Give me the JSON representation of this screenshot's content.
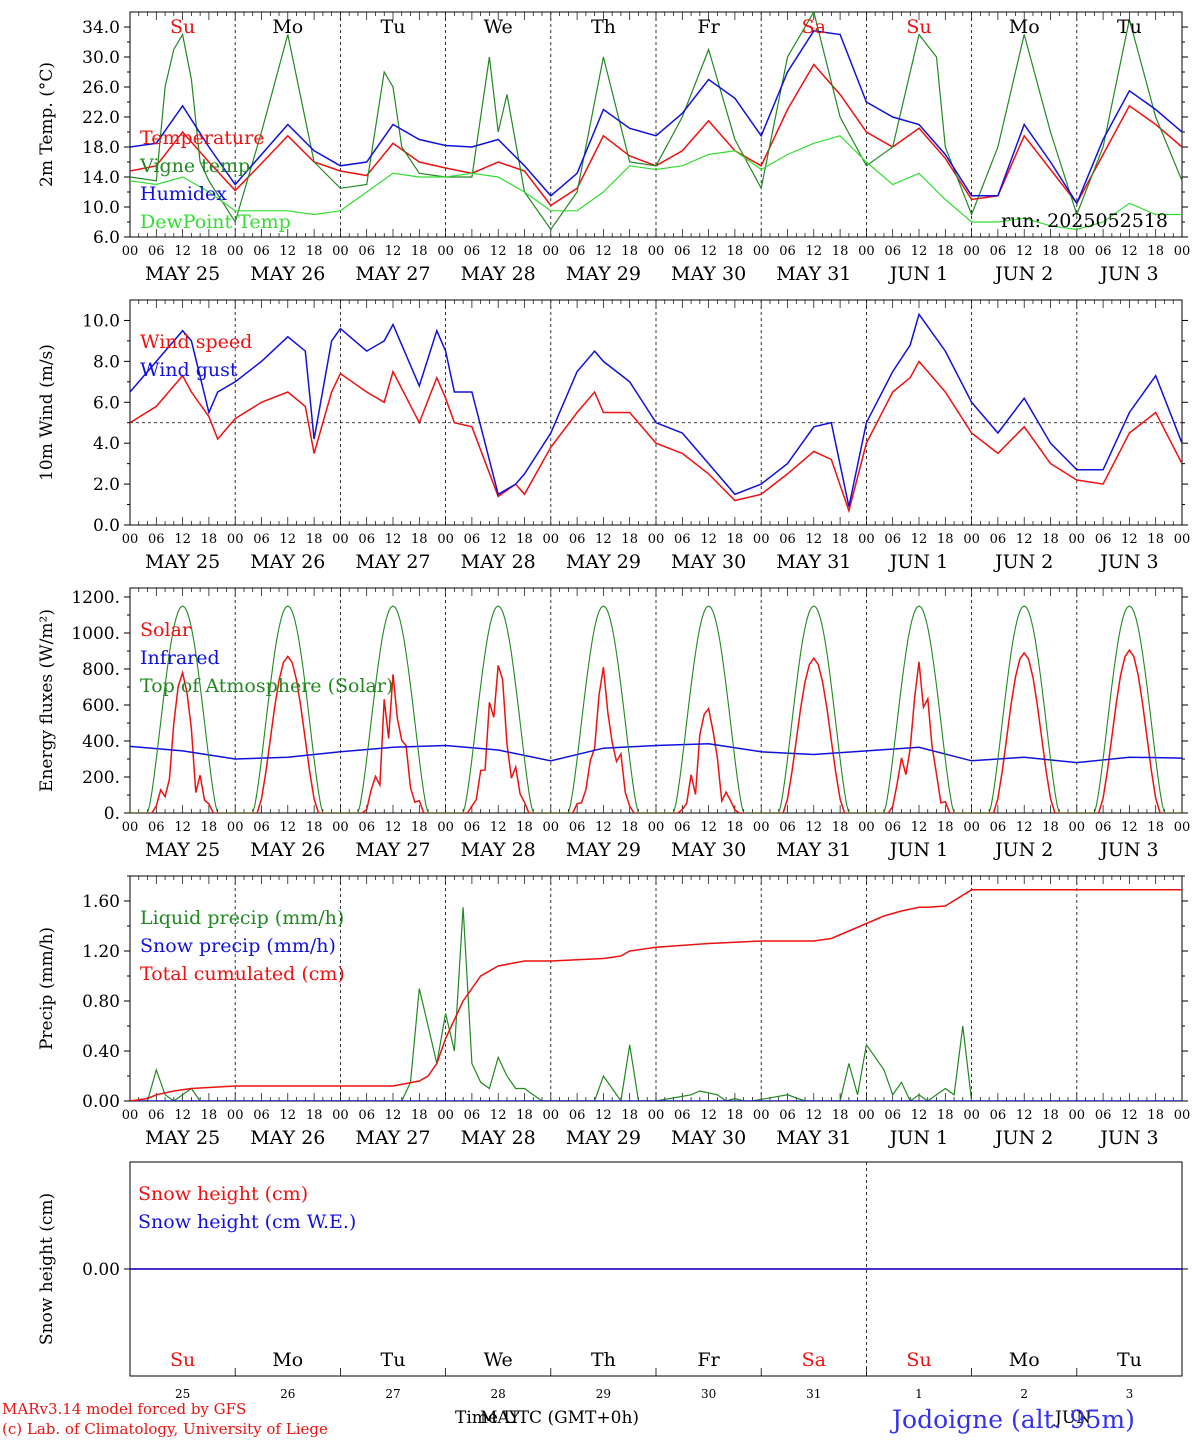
{
  "colors": {
    "red": "#ee1111",
    "green": "#228822",
    "blue": "#1111dd",
    "lightgreen": "#33dd33",
    "black": "#000000"
  },
  "days": {
    "dates": [
      "MAY 25",
      "MAY 26",
      "MAY 27",
      "MAY 28",
      "MAY 29",
      "MAY 30",
      "MAY 31",
      "JUN  1",
      "JUN  2",
      "JUN  3"
    ],
    "weekdays": [
      "Su",
      "Mo",
      "Tu",
      "We",
      "Th",
      "Fr",
      "Sa",
      "Su",
      "Mo",
      "Tu"
    ],
    "weekday_red": [
      true,
      false,
      false,
      false,
      false,
      false,
      true,
      true,
      false,
      false
    ],
    "hours": [
      "00",
      "06",
      "12",
      "18"
    ],
    "day_numbers": [
      "25",
      "26",
      "27",
      "28",
      "29",
      "30",
      "31",
      "1",
      "2",
      "3"
    ],
    "month_may": "MAY",
    "month_jun": "JUN"
  },
  "footer": {
    "model": "MARv3.14 model forced by GFS",
    "lab": "(c) Lab. of Climatology, University of Liege",
    "time_label": "Time UTC (GMT+0h)",
    "station": "Jodoigne (alt. 95m)"
  },
  "chart_data": [
    {
      "id": "temp",
      "type": "line",
      "ylabel": "2m Temp. (°C)",
      "ylim": [
        6,
        36
      ],
      "yticks": [
        "6.0",
        "10.0",
        "14.0",
        "18.0",
        "22.0",
        "26.0",
        "30.0",
        "34.0"
      ],
      "ytick_values": [
        6,
        10,
        14,
        18,
        22,
        26,
        30,
        34
      ],
      "xlim_hours": [
        0,
        240
      ],
      "annotation": "run: 2025052518",
      "series": [
        {
          "name": "Temperature",
          "color": "red",
          "x": [
            0,
            6,
            12,
            18,
            24,
            30,
            36,
            42,
            48,
            54,
            60,
            66,
            72,
            78,
            84,
            90,
            96,
            102,
            108,
            114,
            120,
            126,
            132,
            138,
            144,
            150,
            156,
            162,
            168,
            174,
            180,
            186,
            192,
            198,
            204,
            210,
            216,
            222,
            228,
            234,
            240
          ],
          "y": [
            14.8,
            15.5,
            20,
            16,
            12.2,
            15.8,
            19.5,
            16,
            14.8,
            14.2,
            18.5,
            16,
            15.2,
            14.5,
            16,
            14.8,
            10.2,
            12.5,
            19.5,
            16.8,
            15.5,
            17.5,
            21.5,
            17.5,
            15.5,
            23,
            29,
            25,
            20,
            18,
            20.5,
            16.5,
            11,
            11.5,
            19.5,
            15,
            10.5,
            17,
            23.5,
            21,
            18
          ]
        },
        {
          "name": "Vigne temp",
          "color": "green",
          "x": [
            0,
            6,
            8,
            10,
            12,
            14,
            16,
            18,
            24,
            30,
            36,
            42,
            48,
            54,
            58,
            60,
            62,
            66,
            72,
            78,
            82,
            84,
            86,
            90,
            96,
            102,
            108,
            114,
            120,
            126,
            132,
            138,
            144,
            150,
            156,
            162,
            168,
            174,
            180,
            184,
            186,
            192,
            198,
            204,
            210,
            216,
            222,
            228,
            234,
            240
          ],
          "y": [
            14,
            13.5,
            26,
            31,
            33,
            27,
            16,
            13.5,
            8,
            20,
            33,
            16,
            12.5,
            13,
            28,
            26,
            18,
            14.5,
            14,
            14,
            30,
            20,
            25,
            12,
            7,
            12,
            30,
            16,
            15.5,
            22,
            31,
            19,
            12.5,
            30,
            36,
            22,
            15.5,
            18,
            33,
            30,
            18,
            9,
            18,
            33,
            20,
            9,
            18,
            35,
            22,
            13.5
          ]
        },
        {
          "name": "Humidex",
          "color": "blue",
          "x": [
            0,
            6,
            12,
            18,
            24,
            30,
            36,
            42,
            48,
            54,
            60,
            66,
            72,
            78,
            84,
            90,
            96,
            102,
            108,
            114,
            120,
            126,
            132,
            138,
            144,
            150,
            156,
            162,
            168,
            174,
            180,
            186,
            192,
            198,
            204,
            210,
            216,
            222,
            228,
            234,
            240
          ],
          "y": [
            18,
            18.5,
            23.5,
            18,
            13,
            17,
            21,
            17.5,
            15.5,
            16,
            21,
            19,
            18.2,
            18,
            19,
            15.5,
            11.5,
            14.5,
            23,
            20.5,
            19.5,
            22.5,
            27,
            24.5,
            19.5,
            28,
            33.5,
            33,
            24,
            22,
            21,
            17,
            11.5,
            11.5,
            21,
            16,
            10.5,
            19,
            25.5,
            23,
            20
          ]
        },
        {
          "name": "DewPoint Temp",
          "color": "lightgreen",
          "x": [
            0,
            6,
            12,
            18,
            24,
            30,
            36,
            42,
            48,
            54,
            60,
            66,
            72,
            78,
            84,
            90,
            96,
            102,
            108,
            114,
            120,
            126,
            132,
            138,
            144,
            150,
            156,
            162,
            168,
            174,
            180,
            186,
            192,
            198,
            204,
            210,
            216,
            222,
            228,
            234,
            240
          ],
          "y": [
            13.5,
            13,
            14,
            12,
            9.5,
            9.5,
            9.5,
            9,
            9.5,
            12,
            14.5,
            14,
            14,
            14.5,
            14,
            12,
            9.5,
            9.5,
            12,
            15.5,
            15,
            15.5,
            17,
            17.5,
            15,
            17,
            18.5,
            19.5,
            16,
            13,
            14.5,
            11,
            8,
            8,
            8.5,
            7.5,
            7,
            8,
            10.5,
            9,
            9
          ]
        }
      ]
    },
    {
      "id": "wind",
      "type": "line",
      "ylabel": "10m Wind (m/s)",
      "ylim": [
        0,
        11
      ],
      "yticks": [
        "0.0",
        "2.0",
        "4.0",
        "6.0",
        "8.0",
        "10.0"
      ],
      "ytick_values": [
        0,
        2,
        4,
        6,
        8,
        10
      ],
      "ref_line": 5,
      "xlim_hours": [
        0,
        240
      ],
      "series": [
        {
          "name": "Wind speed",
          "color": "red",
          "x": [
            0,
            6,
            12,
            14,
            18,
            20,
            24,
            30,
            36,
            40,
            42,
            46,
            48,
            54,
            58,
            60,
            66,
            70,
            72,
            74,
            78,
            84,
            88,
            90,
            96,
            102,
            106,
            108,
            114,
            120,
            126,
            132,
            138,
            144,
            150,
            156,
            160,
            164,
            168,
            174,
            178,
            180,
            186,
            192,
            198,
            204,
            210,
            216,
            222,
            228,
            234,
            240
          ],
          "y": [
            5,
            5.8,
            7.3,
            6.5,
            5.3,
            4.2,
            5.2,
            6,
            6.5,
            5.8,
            3.5,
            6.5,
            7.4,
            6.5,
            6,
            7.5,
            5,
            7.2,
            6.2,
            5,
            4.8,
            1.4,
            2,
            1.5,
            3.8,
            5.5,
            6.5,
            5.5,
            5.5,
            4,
            3.5,
            2.5,
            1.2,
            1.5,
            2.5,
            3.6,
            3.2,
            0.7,
            4,
            6.5,
            7.2,
            8,
            6.5,
            4.5,
            3.5,
            4.8,
            3,
            2.2,
            2,
            4.5,
            5.5,
            3
          ]
        },
        {
          "name": "Wind gust",
          "color": "blue",
          "x": [
            0,
            6,
            12,
            14,
            18,
            20,
            24,
            30,
            36,
            40,
            42,
            46,
            48,
            54,
            58,
            60,
            66,
            70,
            72,
            74,
            78,
            84,
            88,
            90,
            96,
            102,
            106,
            108,
            114,
            120,
            126,
            132,
            138,
            144,
            150,
            156,
            160,
            164,
            168,
            174,
            178,
            180,
            186,
            192,
            198,
            204,
            210,
            216,
            222,
            228,
            234,
            240
          ],
          "y": [
            6.5,
            8,
            9.5,
            9,
            5.5,
            6.5,
            7,
            8,
            9.2,
            8.5,
            4.2,
            9,
            9.6,
            8.5,
            9,
            9.8,
            6.8,
            9.5,
            8.5,
            6.5,
            6.5,
            1.5,
            2,
            2.5,
            4.5,
            7.5,
            8.5,
            8,
            7,
            5,
            4.5,
            3,
            1.5,
            2,
            3,
            4.8,
            5,
            0.9,
            5,
            7.5,
            8.8,
            10.3,
            8.5,
            6,
            4.5,
            6.2,
            4,
            2.7,
            2.7,
            5.5,
            7.3,
            4
          ]
        }
      ]
    },
    {
      "id": "energy",
      "type": "line",
      "ylabel": "Energy fluxes (W/m²)",
      "ylim": [
        0,
        1250
      ],
      "yticks": [
        "0.",
        "200.",
        "400.",
        "600.",
        "800.",
        "1000.",
        "1200."
      ],
      "ytick_values": [
        0,
        200,
        400,
        600,
        800,
        1000,
        1200
      ],
      "xlim_hours": [
        0,
        240
      ],
      "series": [
        {
          "name": "Solar",
          "color": "red",
          "peaks": [
            780,
            870,
            770,
            820,
            810,
            580,
            860,
            840,
            890,
            905
          ],
          "cloudy": [
            true,
            false,
            true,
            true,
            true,
            true,
            false,
            true,
            false,
            false
          ]
        },
        {
          "name": "Infrared",
          "color": "blue",
          "x": [
            0,
            12,
            24,
            36,
            48,
            60,
            72,
            84,
            96,
            108,
            120,
            132,
            144,
            156,
            168,
            180,
            192,
            204,
            216,
            228,
            240
          ],
          "y": [
            370,
            345,
            300,
            310,
            340,
            365,
            375,
            350,
            290,
            360,
            375,
            385,
            340,
            325,
            345,
            365,
            290,
            310,
            280,
            310,
            305
          ]
        },
        {
          "name": "Top of Atmosphere (Solar)",
          "color": "green",
          "peak": 1150
        }
      ]
    },
    {
      "id": "precip",
      "type": "line",
      "ylabel": "Precip (mm/h)",
      "ylim": [
        0,
        1.8
      ],
      "yticks": [
        "0.00",
        "0.40",
        "0.80",
        "1.20",
        "1.60"
      ],
      "ytick_values": [
        0,
        0.4,
        0.8,
        1.2,
        1.6
      ],
      "xlim_hours": [
        0,
        240
      ],
      "series": [
        {
          "name": "Liquid precip (mm/h)",
          "color": "green",
          "x": [
            0,
            4,
            6,
            8,
            10,
            12,
            14,
            16,
            18,
            20,
            62,
            64,
            66,
            68,
            70,
            72,
            74,
            76,
            78,
            80,
            82,
            84,
            86,
            88,
            90,
            94,
            96,
            98,
            106,
            108,
            110,
            112,
            114,
            116,
            118,
            120,
            128,
            130,
            134,
            136,
            138,
            140,
            142,
            150,
            154,
            162,
            164,
            166,
            168,
            170,
            172,
            174,
            176,
            178,
            180,
            182,
            186,
            188,
            190,
            192,
            194
          ],
          "y": [
            0,
            0,
            0.25,
            0.05,
            0,
            0.05,
            0.1,
            0,
            0,
            0,
            0,
            0.15,
            0.9,
            0.6,
            0.3,
            0.7,
            0.4,
            1.55,
            0.3,
            0.15,
            0.1,
            0.35,
            0.2,
            0.1,
            0.1,
            0,
            0,
            0,
            0,
            0.2,
            0.1,
            0,
            0.45,
            0,
            0,
            0,
            0.05,
            0.08,
            0.05,
            0,
            0.02,
            0,
            0,
            0.05,
            0,
            0,
            0.3,
            0.05,
            0.45,
            0.35,
            0.25,
            0.05,
            0.15,
            0,
            0.05,
            0,
            0.1,
            0.05,
            0.6,
            0,
            0
          ]
        },
        {
          "name": "Snow precip (mm/h)",
          "color": "blue",
          "x": [
            0,
            240
          ],
          "y": [
            0,
            0
          ]
        },
        {
          "name": "Total cumulated (cm)",
          "color": "red",
          "x": [
            0,
            4,
            6,
            10,
            14,
            24,
            48,
            60,
            66,
            68,
            70,
            72,
            76,
            80,
            84,
            90,
            96,
            108,
            112,
            114,
            120,
            132,
            144,
            156,
            160,
            164,
            168,
            172,
            174,
            176,
            180,
            182,
            186,
            192,
            240
          ],
          "y": [
            0,
            0.02,
            0.05,
            0.08,
            0.1,
            0.12,
            0.12,
            0.12,
            0.16,
            0.2,
            0.3,
            0.5,
            0.8,
            1.0,
            1.08,
            1.12,
            1.12,
            1.14,
            1.16,
            1.2,
            1.23,
            1.26,
            1.28,
            1.28,
            1.3,
            1.36,
            1.42,
            1.48,
            1.5,
            1.52,
            1.55,
            1.55,
            1.56,
            1.69,
            1.69
          ]
        }
      ]
    },
    {
      "id": "snow",
      "type": "line",
      "ylabel": "Snow height (cm)",
      "yticks": [
        "0.00"
      ],
      "ytick_values": [
        0
      ],
      "ylim": [
        -1,
        1
      ],
      "xlim_hours": [
        0,
        240
      ],
      "series": [
        {
          "name": "Snow height (cm)",
          "color": "red",
          "x": [
            0,
            240
          ],
          "y": [
            0,
            0
          ]
        },
        {
          "name": "Snow height (cm W.E.)",
          "color": "blue",
          "x": [
            0,
            240
          ],
          "y": [
            0,
            0
          ]
        }
      ]
    }
  ]
}
